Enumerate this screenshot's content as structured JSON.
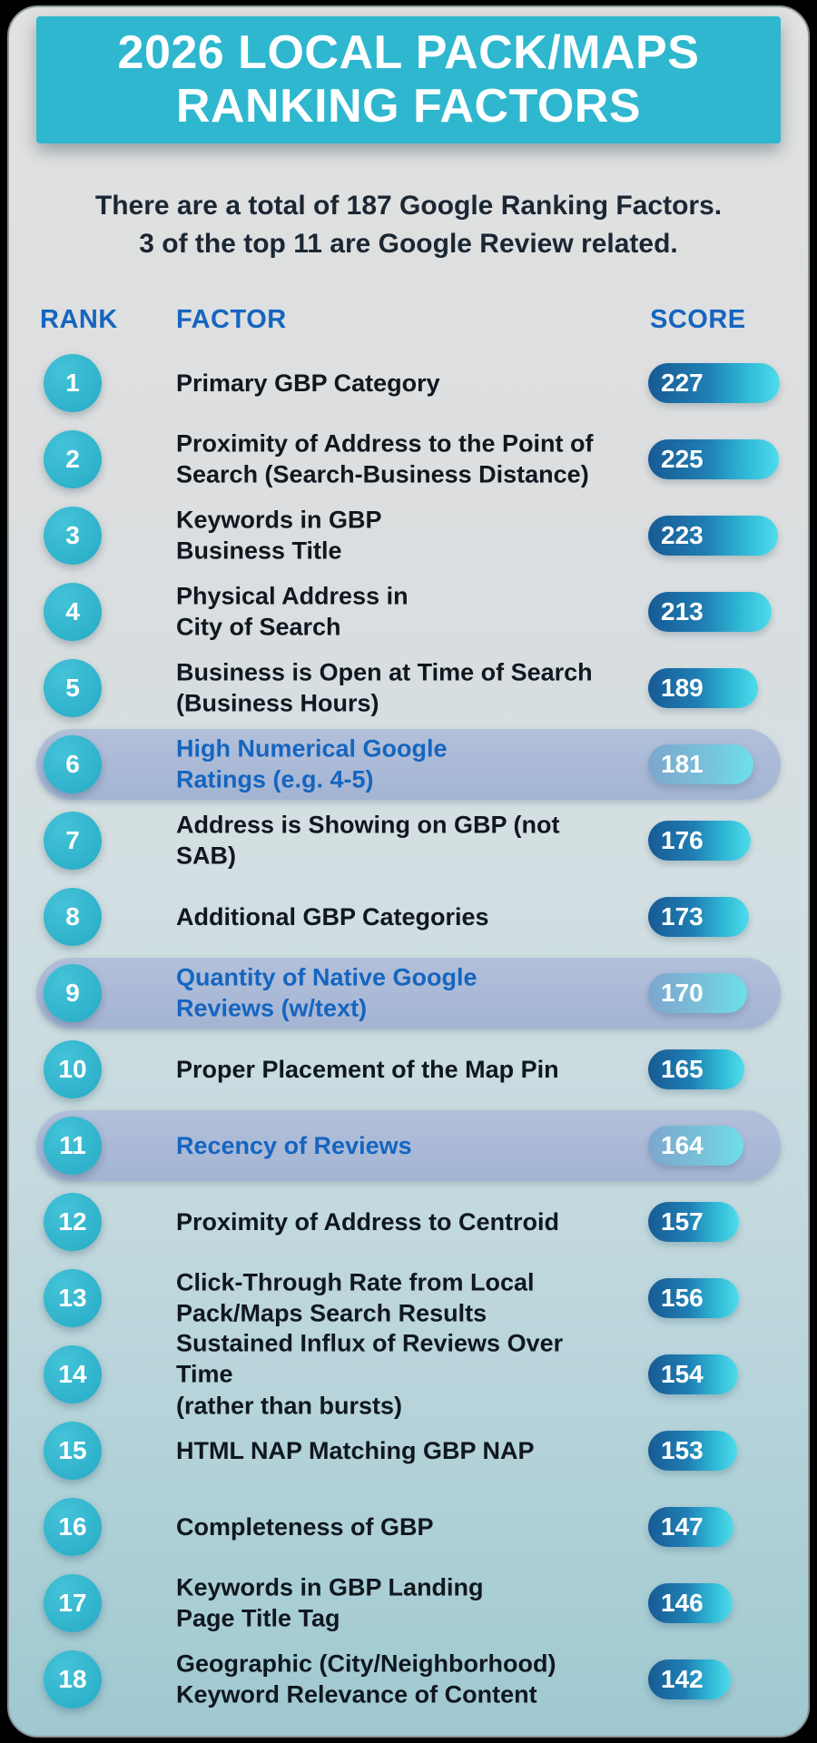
{
  "header": {
    "title": "2026 LOCAL PACK/MAPS\nRANKING FACTORS"
  },
  "intro": {
    "text": "There are a total of 187 Google Ranking Factors.\n3 of the top 11 are Google Review related."
  },
  "table": {
    "columns": {
      "rank": "RANK",
      "factor": "FACTOR",
      "score": "SCORE"
    },
    "rows": [
      {
        "rank": 1,
        "factor": "Primary GBP Category",
        "score": 227,
        "highlighted": false
      },
      {
        "rank": 2,
        "factor": "Proximity of Address to the Point of\nSearch (Search-Business Distance)",
        "score": 225,
        "highlighted": false
      },
      {
        "rank": 3,
        "factor": "Keywords in GBP\nBusiness Title",
        "score": 223,
        "highlighted": false
      },
      {
        "rank": 4,
        "factor": "Physical Address in\nCity of Search",
        "score": 213,
        "highlighted": false
      },
      {
        "rank": 5,
        "factor": "Business is Open at Time of Search\n(Business Hours)",
        "score": 189,
        "highlighted": false
      },
      {
        "rank": 6,
        "factor": "High Numerical Google\nRatings (e.g. 4-5)",
        "score": 181,
        "highlighted": true
      },
      {
        "rank": 7,
        "factor": "Address is Showing on GBP (not SAB)",
        "score": 176,
        "highlighted": false
      },
      {
        "rank": 8,
        "factor": "Additional GBP Categories",
        "score": 173,
        "highlighted": false
      },
      {
        "rank": 9,
        "factor": "Quantity of Native Google\nReviews (w/text)",
        "score": 170,
        "highlighted": true
      },
      {
        "rank": 10,
        "factor": "Proper Placement of the Map Pin",
        "score": 165,
        "highlighted": false
      },
      {
        "rank": 11,
        "factor": "Recency of Reviews",
        "score": 164,
        "highlighted": true
      },
      {
        "rank": 12,
        "factor": "Proximity of Address to Centroid",
        "score": 157,
        "highlighted": false
      },
      {
        "rank": 13,
        "factor": "Click-Through Rate from Local\nPack/Maps Search Results",
        "score": 156,
        "highlighted": false
      },
      {
        "rank": 14,
        "factor": "Sustained Influx of Reviews Over Time\n(rather than bursts)",
        "score": 154,
        "highlighted": false
      },
      {
        "rank": 15,
        "factor": "HTML NAP Matching GBP NAP",
        "score": 153,
        "highlighted": false
      },
      {
        "rank": 16,
        "factor": "Completeness of GBP",
        "score": 147,
        "highlighted": false
      },
      {
        "rank": 17,
        "factor": "Keywords in GBP Landing\nPage Title Tag",
        "score": 146,
        "highlighted": false
      },
      {
        "rank": 18,
        "factor": "Geographic (City/Neighborhood)\nKeyword Relevance of Content",
        "score": 142,
        "highlighted": false
      }
    ]
  },
  "colors": {
    "header_banner": "#2eb7cf",
    "rank_badge": "#31b7ce",
    "column_header_text": "#1565c0",
    "highlight_row_bg": "#a9b8d6",
    "highlight_factor_text": "#1565c0",
    "pill_gradient_start": "#185a94",
    "pill_gradient_end": "#4fdcec",
    "card_bg_top": "#e1e1e1",
    "card_bg_bottom": "#9fc8d0"
  },
  "chart_data": {
    "type": "bar",
    "title": "2026 Local Pack/Maps Ranking Factors",
    "subtitle": "There are a total of 187 Google Ranking Factors. 3 of the top 11 are Google Review related.",
    "xlabel": "SCORE",
    "ylabel": "FACTOR",
    "orientation": "horizontal",
    "categories": [
      "Primary GBP Category",
      "Proximity of Address to the Point of Search (Search-Business Distance)",
      "Keywords in GBP Business Title",
      "Physical Address in City of Search",
      "Business is Open at Time of Search (Business Hours)",
      "High Numerical Google Ratings (e.g. 4-5)",
      "Address is Showing on GBP (not SAB)",
      "Additional GBP Categories",
      "Quantity of Native Google Reviews (w/text)",
      "Proper Placement of the Map Pin",
      "Recency of Reviews",
      "Proximity of Address to Centroid",
      "Click-Through Rate from Local Pack/Maps Search Results",
      "Sustained Influx of Reviews Over Time (rather than bursts)",
      "HTML NAP Matching GBP NAP",
      "Completeness of GBP",
      "Keywords in GBP Landing Page Title Tag",
      "Geographic (City/Neighborhood) Keyword Relevance of Content"
    ],
    "values": [
      227,
      225,
      223,
      213,
      189,
      181,
      176,
      173,
      170,
      165,
      164,
      157,
      156,
      154,
      153,
      147,
      146,
      142
    ],
    "ranks": [
      1,
      2,
      3,
      4,
      5,
      6,
      7,
      8,
      9,
      10,
      11,
      12,
      13,
      14,
      15,
      16,
      17,
      18
    ],
    "highlighted_ranks": [
      6,
      9,
      11
    ],
    "value_range": [
      0,
      227
    ],
    "grid": false,
    "legend": false
  }
}
